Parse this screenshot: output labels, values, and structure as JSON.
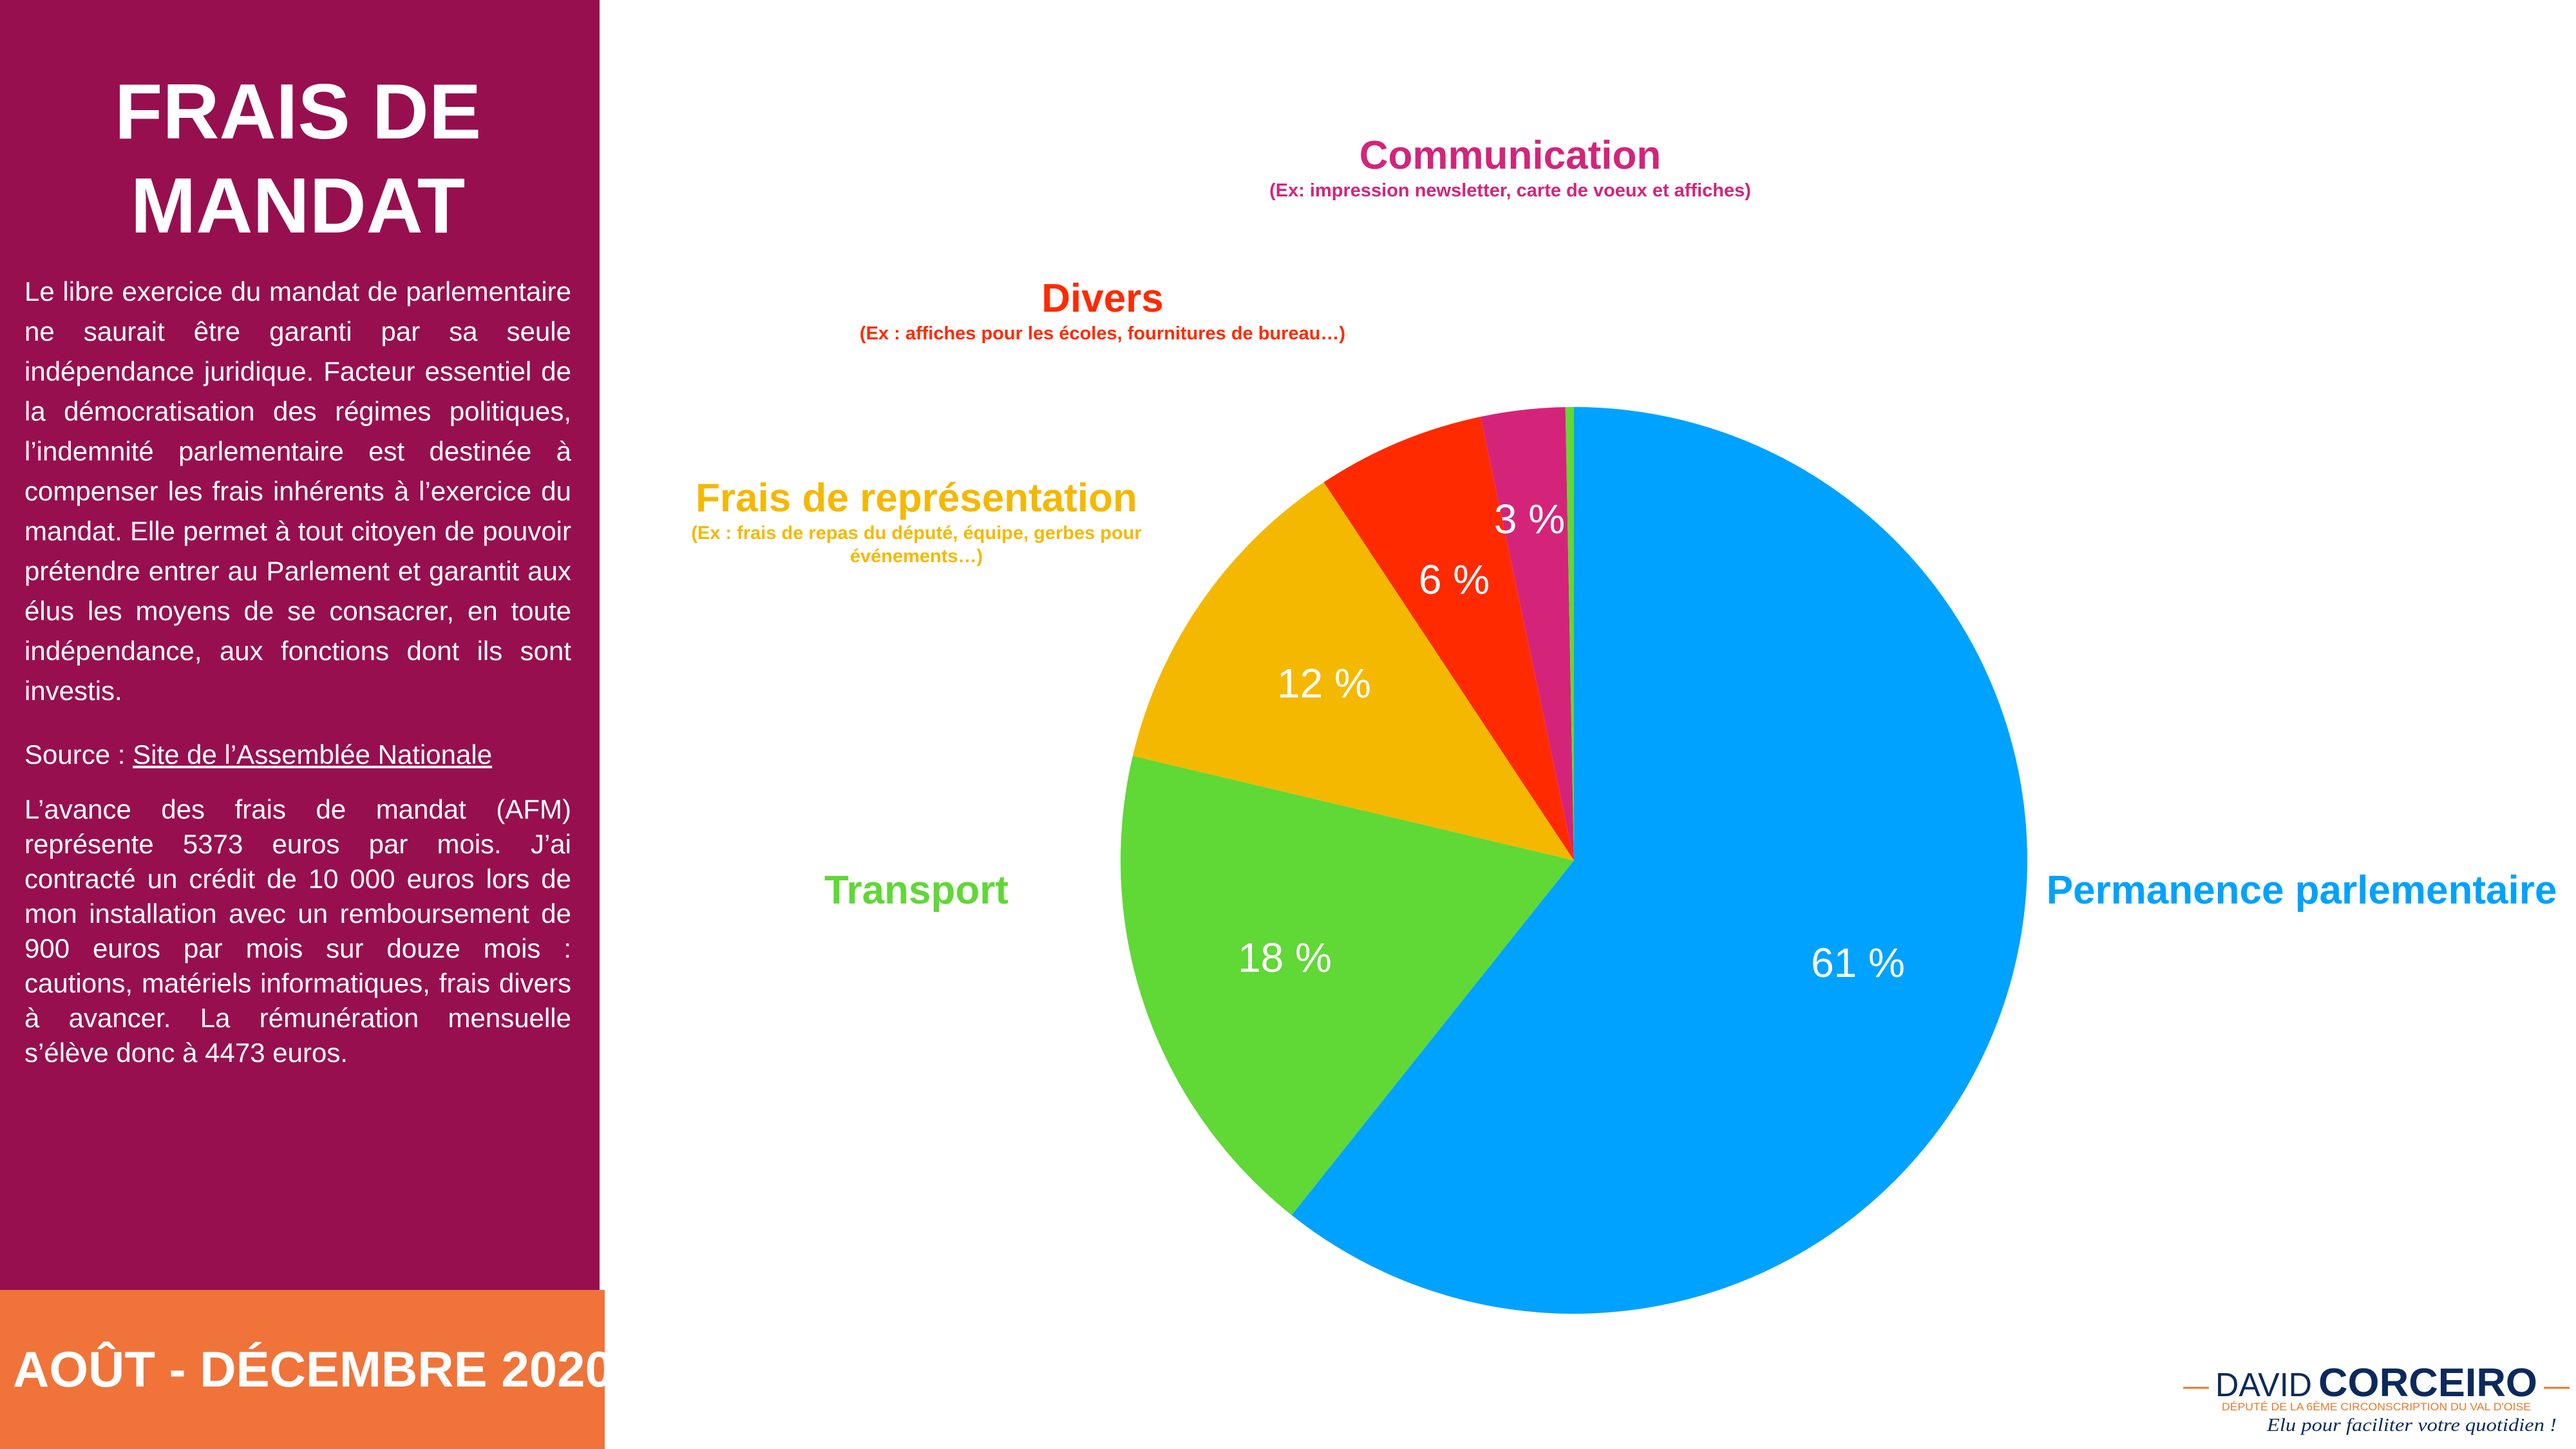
{
  "sidebar": {
    "title_line1": "FRAIS DE",
    "title_line2": "MANDAT",
    "intro": "Le libre exercice du mandat de parlementaire ne saurait être garanti par sa seule indépendance juridique. Facteur essentiel de la démocratisation des régimes politiques, l’indemnité parlementaire est destinée à compenser les frais inhérents à l’exercice du mandat. Elle permet à tout citoyen de pouvoir prétendre entrer au Parlement et garantit aux élus les moyens de se consacrer, en toute indépendance, aux fonctions dont ils sont investis.",
    "source_label": "Source : ",
    "source_link": "Site de l’Assemblée Nationale",
    "afm": "L’avance des frais de mandat (AFM) représente 5373 euros par mois. J’ai contracté un crédit de 10 000 euros lors de mon installation avec un remboursement de 900 euros par mois sur douze mois : cautions, matériels informatiques, frais divers à avancer. La rémunération mensuelle s’élève donc à 4473 euros.",
    "period": "AOÛT - DÉCEMBRE 2020",
    "colors": {
      "panel": "#970F4F",
      "period": "#F07339"
    }
  },
  "chart_data": {
    "type": "pie",
    "start": "top",
    "direction": "clockwise",
    "slices": [
      {
        "name": "Permanence parlementaire",
        "value": 60.7,
        "label": "61 %",
        "color": "#00A2FF",
        "note": ""
      },
      {
        "name": "Transport",
        "value": 18,
        "label": "18 %",
        "color": "#60D836",
        "note": ""
      },
      {
        "name": "Frais de représentation",
        "value": 12,
        "label": "12 %",
        "color": "#F5B800",
        "note": "(Ex : frais de repas du député, équipe, gerbes pour",
        "note2": "événements…)"
      },
      {
        "name": "Divers",
        "value": 6,
        "label": "6 %",
        "color": "#FF2A00",
        "note": "(Ex : affiches pour les écoles, fournitures de bureau…)"
      },
      {
        "name": "Communication",
        "value": 3,
        "label": "3 %",
        "color": "#D4247A",
        "note": "(Ex: impression newsletter, carte de voeux et affiches)"
      },
      {
        "name": "",
        "value": 0.3,
        "label": "",
        "color": "#60D836"
      }
    ]
  },
  "logo": {
    "first": "DAVID",
    "last": "CORCEIRO",
    "subtitle": "DÉPUTÉ DE LA 6ÈME CIRCONSCRIPTION DU VAL D'OISE",
    "slogan": "Elu pour faciliter votre quotidien !",
    "colors": {
      "navy": "#0B2A5B",
      "orange": "#E8792A"
    }
  }
}
